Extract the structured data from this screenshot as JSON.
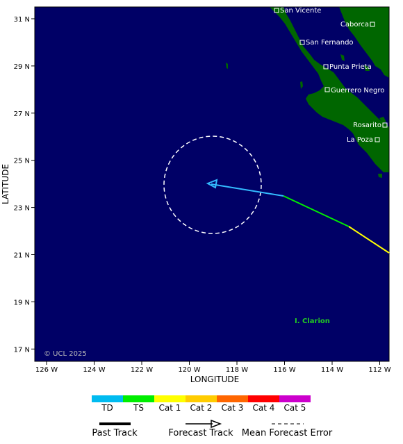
{
  "map": {
    "x_axis_label": "LONGITUDE",
    "y_axis_label": "LATITUDE",
    "copyright": "© UCL 2025",
    "island_label": "I. Clarion",
    "colors": {
      "ocean": "#000066",
      "land": "#006600",
      "frame": "#000000",
      "island_label": "#22cc22"
    },
    "lon_ticks": [
      "126 W",
      "124 W",
      "122 W",
      "120 W",
      "118 W",
      "116 W",
      "114 W",
      "112 W"
    ],
    "lat_ticks": [
      "31 N",
      "29 N",
      "27 N",
      "25 N",
      "23 N",
      "21 N",
      "19 N",
      "17 N"
    ],
    "cities": [
      {
        "name": "San Vicente"
      },
      {
        "name": "Caborca"
      },
      {
        "name": "San Fernando"
      },
      {
        "name": "Punta Prieta"
      },
      {
        "name": "Guerrero Negro"
      },
      {
        "name": "Rosarito"
      },
      {
        "name": "La Poza"
      }
    ]
  },
  "track": {
    "past_segments": [
      {
        "category": "Cat 1",
        "color": "#ffff00"
      },
      {
        "category": "TS",
        "color": "#00ee00"
      },
      {
        "category": "TD",
        "color": "#00bbff"
      }
    ],
    "forecast_color": "#33bbff",
    "error_circle_color": "#ffffff"
  },
  "legend": {
    "scale": [
      {
        "label": "TD",
        "color": "#00bbf0"
      },
      {
        "label": "TS",
        "color": "#00ee00"
      },
      {
        "label": "Cat 1",
        "color": "#ffff00"
      },
      {
        "label": "Cat 2",
        "color": "#ffcc00"
      },
      {
        "label": "Cat 3",
        "color": "#ff6600"
      },
      {
        "label": "Cat 4",
        "color": "#ff0000"
      },
      {
        "label": "Cat 5",
        "color": "#cc00cc"
      }
    ],
    "keys": {
      "past_track": "Past Track",
      "forecast_track": "Forecast Track",
      "mean_error": "Mean Forecast Error"
    }
  }
}
